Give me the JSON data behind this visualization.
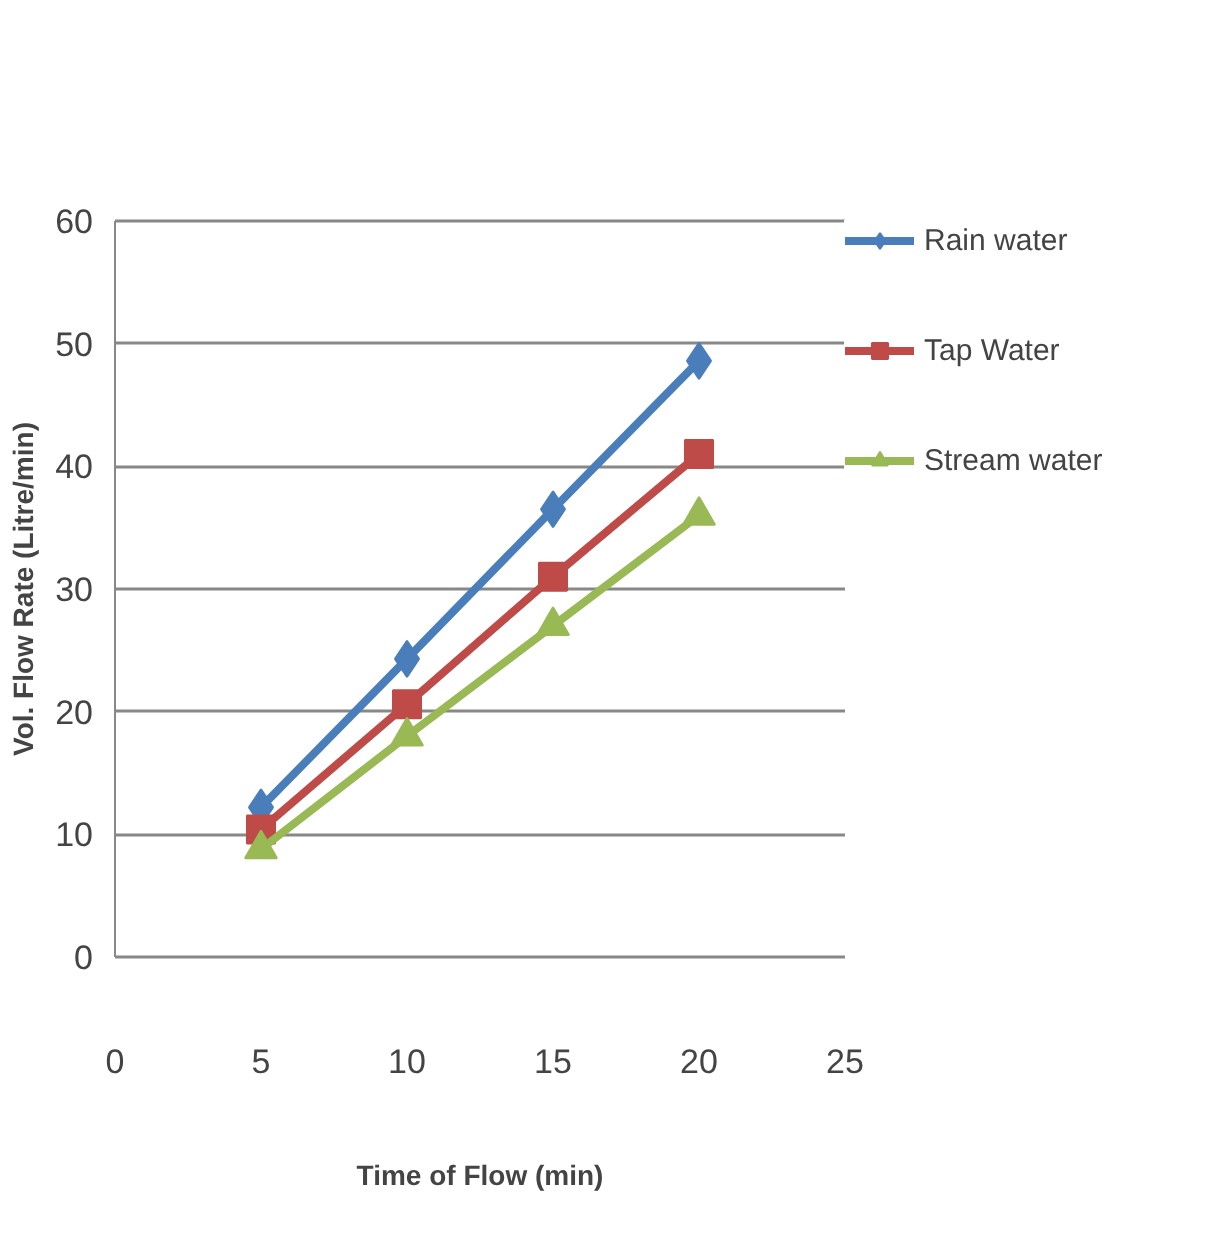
{
  "chart_data": {
    "type": "line",
    "xlabel": "Time of Flow (min)",
    "ylabel": "Vol. Flow Rate (Litre/min)",
    "x": [
      5,
      10,
      15,
      20
    ],
    "series": [
      {
        "name": "Rain water",
        "color": "#4a7ebb",
        "marker": "diamond",
        "values": [
          12.2,
          24.3,
          36.5,
          48.6
        ]
      },
      {
        "name": "Tap Water",
        "color": "#be4b48",
        "marker": "square",
        "values": [
          10.4,
          20.6,
          31,
          41
        ]
      },
      {
        "name": "Stream water",
        "color": "#98b954",
        "marker": "triangle",
        "values": [
          8.8,
          18,
          27,
          36
        ]
      }
    ],
    "xlim": [
      0,
      25
    ],
    "xticks": [
      0,
      5,
      10,
      15,
      20,
      25
    ],
    "ylim": [
      0,
      60
    ],
    "yticks": [
      0,
      10,
      20,
      30,
      40,
      50,
      60
    ],
    "grid": "y",
    "legend": "right",
    "line_style": "solid"
  }
}
